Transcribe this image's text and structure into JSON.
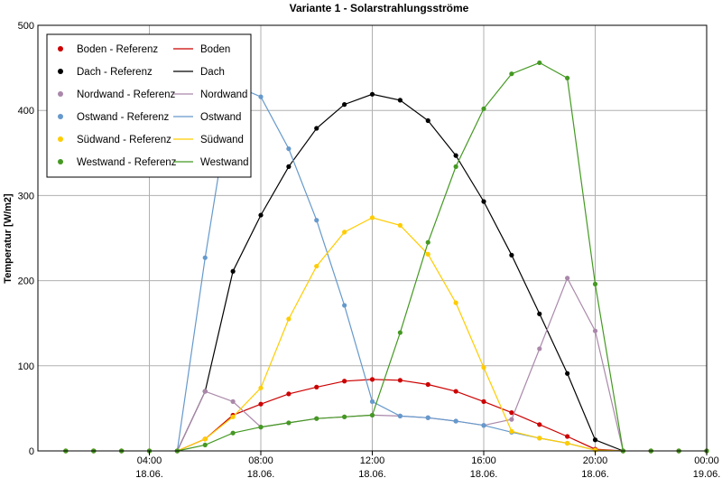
{
  "chart_data": {
    "type": "line",
    "title": "Variante 1 - Solarstrahlungsströme",
    "ylabel": "Temperatur [W/m2]",
    "xlabel": "",
    "x_unit": "hour of day",
    "xlim": [
      0,
      24
    ],
    "ylim": [
      0,
      500
    ],
    "grid": true,
    "legend_position": "top-left",
    "y_ticks": [
      "0",
      "100",
      "200",
      "300",
      "400",
      "500"
    ],
    "x_ticks": [
      {
        "value": 4,
        "time": "04:00",
        "date": "18.06."
      },
      {
        "value": 8,
        "time": "08:00",
        "date": "18.06."
      },
      {
        "value": 12,
        "time": "12:00",
        "date": "18.06."
      },
      {
        "value": 16,
        "time": "16:00",
        "date": "18.06."
      },
      {
        "value": 20,
        "time": "20:00",
        "date": "18.06."
      },
      {
        "value": 24,
        "time": "00:00",
        "date": "19.06."
      }
    ],
    "reference_x": [
      1,
      2,
      3,
      4,
      5,
      6,
      7,
      8,
      9,
      10,
      11,
      12,
      13,
      14,
      15,
      16,
      17,
      18,
      19,
      20,
      21,
      22,
      23,
      24
    ],
    "series": [
      {
        "name": "Boden",
        "ref_name": "Boden - Referenz",
        "color": "#cc0000",
        "line_x": [
          5,
          6,
          7,
          8,
          9,
          10,
          11,
          12,
          13,
          14,
          15,
          16,
          17,
          18,
          19,
          20,
          21
        ],
        "line_y": [
          0,
          14,
          42,
          55,
          67,
          75,
          82,
          84,
          83,
          78,
          70,
          58,
          45,
          31,
          17,
          2,
          0
        ],
        "ref_y": [
          0,
          0,
          0,
          0,
          0,
          14,
          42,
          55,
          67,
          75,
          82,
          84,
          83,
          78,
          70,
          58,
          45,
          31,
          17,
          2,
          0,
          0,
          0,
          0
        ]
      },
      {
        "name": "Dach",
        "ref_name": "Dach - Referenz",
        "color": "#000000",
        "line_x": [
          5,
          6,
          7,
          8,
          9,
          10,
          11,
          12,
          13,
          14,
          15,
          16,
          17,
          18,
          19,
          20,
          21
        ],
        "line_y": [
          0,
          70,
          211,
          277,
          334,
          379,
          407,
          419,
          412,
          388,
          347,
          293,
          230,
          161,
          91,
          13,
          0
        ],
        "ref_y": [
          0,
          0,
          0,
          0,
          0,
          70,
          211,
          277,
          334,
          379,
          407,
          419,
          412,
          388,
          347,
          293,
          230,
          161,
          91,
          13,
          0,
          0,
          0,
          0
        ]
      },
      {
        "name": "Nordwand",
        "ref_name": "Nordwand - Referenz",
        "color": "#aa88aa",
        "line_x": [
          5,
          6,
          7,
          8,
          9,
          10,
          11,
          12,
          13,
          14,
          15,
          16,
          17,
          18,
          19,
          20,
          21
        ],
        "line_y": [
          0,
          70,
          58,
          28,
          33,
          38,
          40,
          42,
          41,
          39,
          35,
          30,
          37,
          120,
          203,
          141,
          0
        ],
        "ref_y": [
          0,
          0,
          0,
          0,
          0,
          70,
          58,
          28,
          33,
          38,
          40,
          42,
          41,
          39,
          35,
          30,
          37,
          120,
          203,
          141,
          0,
          0,
          0,
          0
        ]
      },
      {
        "name": "Ostwand",
        "ref_name": "Ostwand - Referenz",
        "color": "#6699cc",
        "line_x": [
          5,
          6,
          7,
          8,
          9,
          10,
          11,
          12,
          13,
          14,
          15,
          16,
          17,
          18,
          19,
          20,
          21
        ],
        "line_y": [
          0,
          227,
          430,
          416,
          355,
          271,
          171,
          58,
          41,
          39,
          35,
          30,
          22,
          15,
          9,
          1,
          0
        ],
        "ref_y": [
          0,
          0,
          0,
          0,
          0,
          227,
          430,
          416,
          355,
          271,
          171,
          58,
          41,
          39,
          35,
          30,
          22,
          15,
          9,
          1,
          0,
          0,
          0,
          0
        ]
      },
      {
        "name": "Südwand",
        "ref_name": "Südwand - Referenz",
        "color": "#ffcc00",
        "line_x": [
          5,
          6,
          7,
          8,
          9,
          10,
          11,
          12,
          13,
          14,
          15,
          16,
          17,
          18,
          19,
          20,
          21
        ],
        "line_y": [
          0,
          14,
          40,
          74,
          155,
          217,
          257,
          274,
          265,
          231,
          174,
          98,
          23,
          15,
          9,
          1,
          0
        ],
        "ref_y": [
          0,
          0,
          0,
          0,
          0,
          14,
          40,
          74,
          155,
          217,
          257,
          274,
          265,
          231,
          174,
          98,
          23,
          15,
          9,
          1,
          0,
          0,
          0,
          0
        ]
      },
      {
        "name": "Westwand",
        "ref_name": "Westwand - Referenz",
        "color": "#449922",
        "line_x": [
          5,
          6,
          7,
          8,
          9,
          10,
          11,
          12,
          13,
          14,
          15,
          16,
          17,
          18,
          19,
          20,
          21
        ],
        "line_y": [
          0,
          7,
          21,
          28,
          33,
          38,
          40,
          42,
          139,
          245,
          334,
          402,
          443,
          456,
          438,
          196,
          0
        ],
        "ref_y": [
          0,
          0,
          0,
          0,
          0,
          7,
          21,
          28,
          33,
          38,
          40,
          42,
          139,
          245,
          334,
          402,
          443,
          456,
          438,
          196,
          0,
          0,
          0,
          0
        ]
      }
    ]
  }
}
